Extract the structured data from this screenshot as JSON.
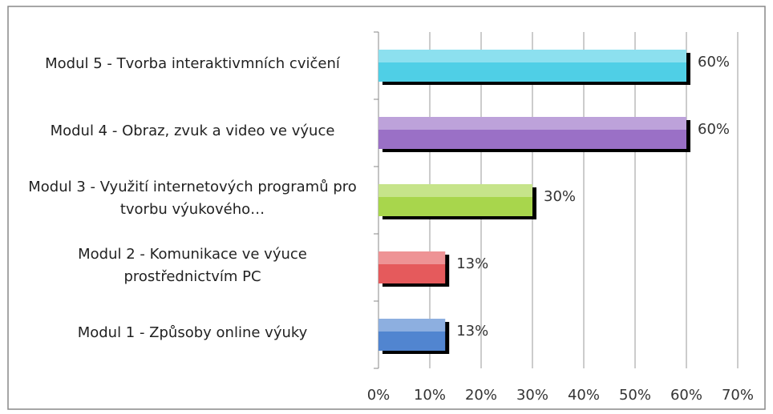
{
  "chart_data": {
    "type": "bar",
    "orientation": "horizontal",
    "categories": [
      "Modul 5 - Tvorba interaktivmních cvičení",
      "Modul 4 - Obraz, zvuk a video ve výuce",
      "Modul 3 - Využití internetových programů pro tvorbu výukového…",
      "Modul 2 - Komunikace ve výuce prostřednictvím PC",
      "Modul 1 - Způsoby online výuky"
    ],
    "values": [
      60,
      60,
      30,
      13,
      13
    ],
    "value_labels": [
      "60%",
      "60%",
      "30%",
      "13%",
      "13%"
    ],
    "colors": [
      "#4fcfe6",
      "#9a70c6",
      "#a8d64c",
      "#e55a5c",
      "#5185d0"
    ],
    "xlim": [
      0,
      70
    ],
    "xticks": [
      {
        "value": 0,
        "label": "0%"
      },
      {
        "value": 10,
        "label": "10%"
      },
      {
        "value": 20,
        "label": "20%"
      },
      {
        "value": 30,
        "label": "30%"
      },
      {
        "value": 40,
        "label": "40%"
      },
      {
        "value": 50,
        "label": "50%"
      },
      {
        "value": 60,
        "label": "60%"
      },
      {
        "value": 70,
        "label": "70%"
      }
    ],
    "grid": true
  }
}
